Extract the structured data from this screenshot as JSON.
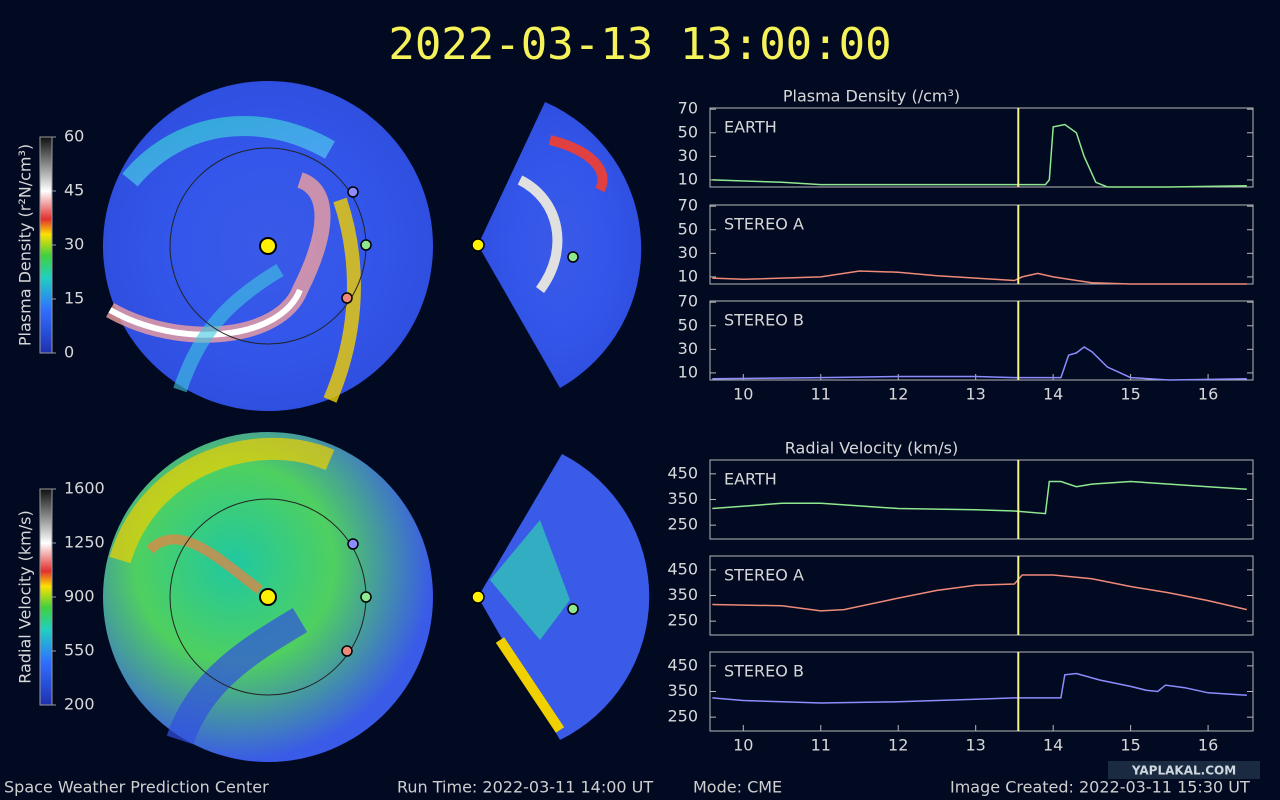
{
  "title": "2022-03-13 13:00:00",
  "footer": {
    "left": "Space Weather Prediction Center",
    "run_time": "Run Time: 2022-03-11 14:00 UT",
    "mode": "Mode: CME",
    "created": "Image Created: 2022-03-11 15:30 UT"
  },
  "watermark": "YAPLAKAL.COM",
  "colorbars": [
    {
      "label": "Plasma Density (r²N/cm³)",
      "ylim": [
        0,
        60
      ],
      "yticks": [
        0,
        15,
        30,
        45,
        60
      ]
    },
    {
      "label": "Radial Velocity (km/s)",
      "ylim": [
        200,
        1600
      ],
      "yticks": [
        200,
        550,
        900,
        1250,
        1600
      ]
    }
  ],
  "chart_data": [
    {
      "type": "line",
      "title": "Plasma Density (/cm³)",
      "label": "EARTH",
      "color": "#8fe88f",
      "xlim": [
        9.57,
        16.58
      ],
      "ylim": [
        4,
        71
      ],
      "yticks": [
        10,
        30,
        50,
        70
      ],
      "marker_x": 13.55,
      "x": [
        9.6,
        10.5,
        11,
        12,
        13,
        13.9,
        13.95,
        14.0,
        14.15,
        14.3,
        14.4,
        14.55,
        14.7,
        15.5,
        16.5
      ],
      "values": [
        10,
        8,
        6,
        6,
        6,
        6,
        10,
        55,
        57,
        50,
        30,
        8,
        4,
        4,
        5
      ]
    },
    {
      "type": "line",
      "label": "STEREO A",
      "color": "#f08a78",
      "xlim": [
        9.57,
        16.58
      ],
      "ylim": [
        4,
        71
      ],
      "yticks": [
        10,
        30,
        50,
        70
      ],
      "marker_x": 13.55,
      "x": [
        9.6,
        10,
        11,
        11.5,
        12,
        12.5,
        13,
        13.5,
        13.6,
        13.8,
        14,
        14.2,
        14.5,
        15,
        16.5
      ],
      "values": [
        9,
        8,
        10,
        15,
        14,
        11,
        9,
        7,
        10,
        13,
        10,
        8,
        5,
        4,
        4
      ]
    },
    {
      "type": "line",
      "label": "STEREO B",
      "color": "#8c8cff",
      "xlim": [
        9.57,
        16.58
      ],
      "ylim": [
        4,
        71
      ],
      "yticks": [
        10,
        30,
        50,
        70
      ],
      "marker_x": 13.55,
      "xticks": [
        10,
        11,
        12,
        13,
        14,
        15,
        16
      ],
      "x": [
        9.6,
        11,
        12,
        13,
        13.5,
        14.1,
        14.2,
        14.3,
        14.4,
        14.5,
        14.7,
        15,
        15.5,
        16.5
      ],
      "values": [
        5,
        6,
        7,
        7,
        6,
        6,
        25,
        27,
        32,
        28,
        15,
        6,
        4,
        5
      ]
    },
    {
      "type": "line",
      "title": "Radial Velocity (km/s)",
      "label": "EARTH",
      "color": "#8fe88f",
      "xlim": [
        9.57,
        16.58
      ],
      "ylim": [
        196,
        504
      ],
      "yticks": [
        250,
        350,
        450
      ],
      "marker_x": 13.55,
      "x": [
        9.6,
        10.5,
        11,
        12,
        13,
        13.5,
        13.9,
        13.95,
        14.1,
        14.3,
        14.5,
        15,
        15.5,
        16,
        16.5
      ],
      "values": [
        315,
        335,
        335,
        315,
        310,
        305,
        295,
        420,
        420,
        400,
        410,
        420,
        410,
        400,
        390
      ]
    },
    {
      "type": "line",
      "label": "STEREO A",
      "color": "#f08a78",
      "xlim": [
        9.57,
        16.58
      ],
      "ylim": [
        196,
        504
      ],
      "yticks": [
        250,
        350,
        450
      ],
      "marker_x": 13.55,
      "x": [
        9.6,
        10.5,
        11,
        11.3,
        12,
        12.5,
        13,
        13.5,
        13.6,
        14,
        14.5,
        15,
        15.5,
        16,
        16.5
      ],
      "values": [
        315,
        310,
        290,
        295,
        340,
        370,
        390,
        395,
        430,
        430,
        415,
        385,
        360,
        330,
        295
      ]
    },
    {
      "type": "line",
      "label": "STEREO B",
      "color": "#8c8cff",
      "xlim": [
        9.57,
        16.58
      ],
      "ylim": [
        196,
        504
      ],
      "yticks": [
        250,
        350,
        450
      ],
      "marker_x": 13.55,
      "xticks": [
        10,
        11,
        12,
        13,
        14,
        15,
        16
      ],
      "x": [
        9.6,
        10,
        11,
        12,
        13,
        13.5,
        14.1,
        14.15,
        14.3,
        14.6,
        15,
        15.2,
        15.35,
        15.45,
        15.7,
        16,
        16.5
      ],
      "values": [
        325,
        315,
        305,
        310,
        320,
        325,
        325,
        415,
        420,
        395,
        370,
        355,
        350,
        375,
        365,
        345,
        335
      ]
    }
  ]
}
